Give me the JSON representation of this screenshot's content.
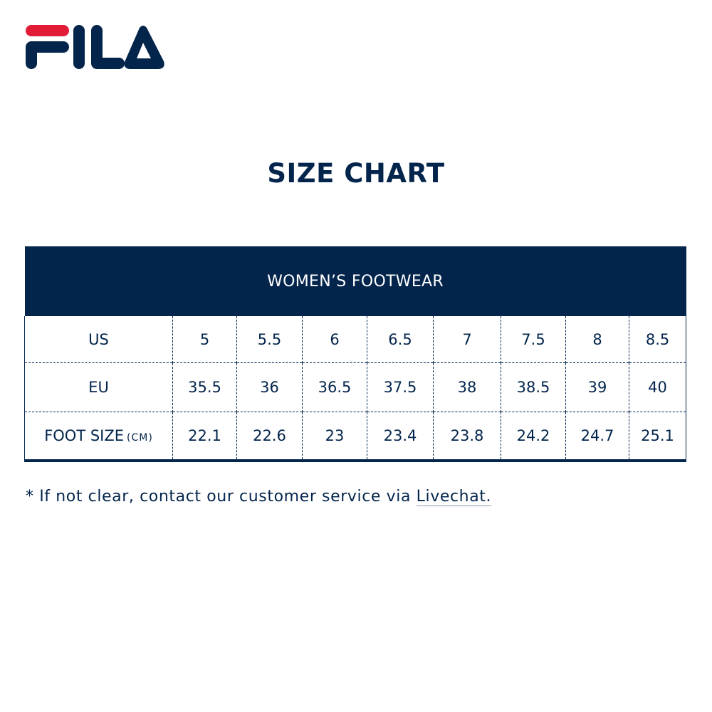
{
  "brand": {
    "logo_text": "FILA",
    "colors": {
      "navy": "#03254c",
      "red": "#e21b36"
    }
  },
  "title": "SIZE CHART",
  "table": {
    "header": "WOMEN’S FOOTWEAR",
    "rows": [
      {
        "label": "US",
        "unit": "",
        "values": [
          "5",
          "5.5",
          "6",
          "6.5",
          "7",
          "7.5",
          "8",
          "8.5"
        ]
      },
      {
        "label": "EU",
        "unit": "",
        "values": [
          "35.5",
          "36",
          "36.5",
          "37.5",
          "38",
          "38.5",
          "39",
          "40"
        ]
      },
      {
        "label": "FOOT SIZE",
        "unit": "(CM)",
        "values": [
          "22.1",
          "22.6",
          "23",
          "23.4",
          "23.8",
          "24.2",
          "24.7",
          "25.1"
        ]
      }
    ]
  },
  "note": {
    "text": "* If not clear, contact our customer service via ",
    "link": "Livechat",
    "end": "."
  }
}
